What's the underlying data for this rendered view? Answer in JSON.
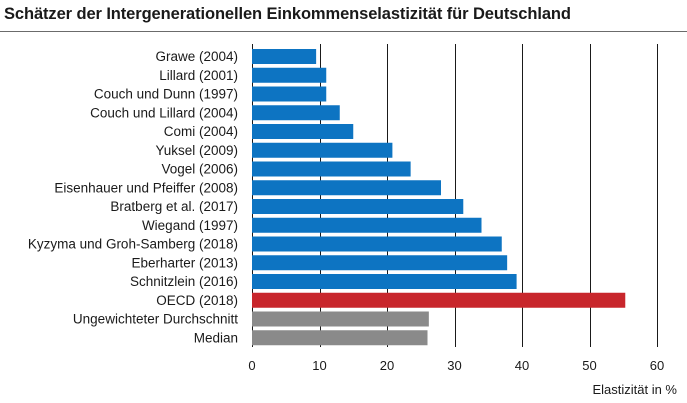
{
  "chart_data": {
    "type": "bar",
    "orientation": "horizontal",
    "title": "Schätzer der Intergenerationellen Einkommenselastizität für Deutschland",
    "xlabel": "Elastizität in %",
    "ylabel": "",
    "xlim": [
      0,
      60
    ],
    "xticks": [
      0,
      10,
      20,
      30,
      40,
      50,
      60
    ],
    "grid": "vertical",
    "legend": "none",
    "categories": [
      "Grawe (2004)",
      "Lillard (2001)",
      "Couch und Dunn (1997)",
      "Couch und Lillard (2004)",
      "Comi (2004)",
      "Yuksel (2009)",
      "Vogel (2006)",
      "Eisenhauer und Pfeiffer (2008)",
      "Bratberg et al. (2017)",
      "Wiegand (1997)",
      "Kyzyma und Groh-Samberg (2018)",
      "Eberharter (2013)",
      "Schnitzlein (2016)",
      "OECD (2018)",
      "Ungewichteter Durchschnitt",
      "Median"
    ],
    "values": [
      9.5,
      11,
      11,
      13,
      15,
      20.8,
      23.5,
      28,
      31.3,
      34,
      37,
      37.8,
      39.2,
      55.3,
      26.2,
      26
    ],
    "bar_colors": [
      "#0d74c2",
      "#0d74c2",
      "#0d74c2",
      "#0d74c2",
      "#0d74c2",
      "#0d74c2",
      "#0d74c2",
      "#0d74c2",
      "#0d74c2",
      "#0d74c2",
      "#0d74c2",
      "#0d74c2",
      "#0d74c2",
      "#c8262c",
      "#8a8a8a",
      "#8a8a8a"
    ],
    "grid_color": "#1a1a1a"
  }
}
